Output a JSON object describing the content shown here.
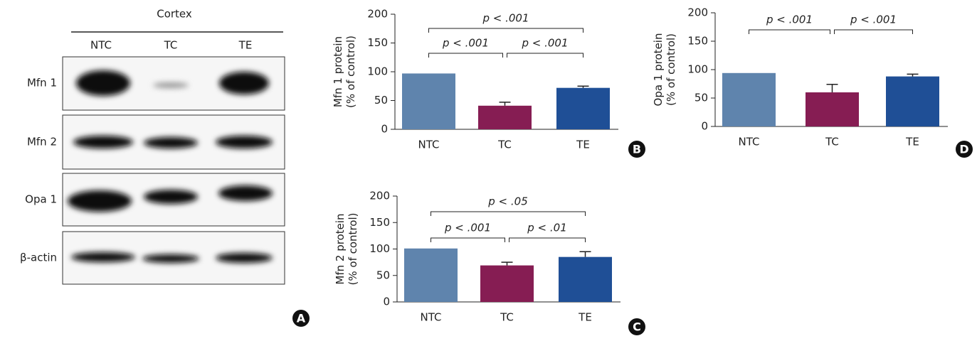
{
  "blot": {
    "title": "Cortex",
    "columns": [
      "NTC",
      "TC",
      "TE"
    ],
    "rows": [
      "Mfn 1",
      "Mfn 2",
      "Opa 1",
      "β-actin"
    ],
    "panel": "A"
  },
  "chart_data": [
    {
      "type": "bar",
      "panel": "B",
      "ylabel": [
        "Mfn 1 protein",
        "(% of control)"
      ],
      "categories": [
        "NTC",
        "TC",
        "TE"
      ],
      "values": [
        97,
        41,
        72
      ],
      "errors": [
        null,
        6,
        3
      ],
      "colors": [
        "#5f84ad",
        "#861d53",
        "#1f4f96"
      ],
      "ylim": [
        0,
        200
      ],
      "yticks": [
        0,
        50,
        100,
        150,
        200
      ],
      "annotations": [
        {
          "text": "p < .001",
          "between": [
            0,
            2
          ]
        },
        {
          "text": "p < .001",
          "between": [
            0,
            1
          ]
        },
        {
          "text": "p < .001",
          "between": [
            1,
            2
          ]
        }
      ]
    },
    {
      "type": "bar",
      "panel": "C",
      "ylabel": [
        "Mfn 2 protein",
        "(% of control)"
      ],
      "categories": [
        "NTC",
        "TC",
        "TE"
      ],
      "values": [
        101,
        69,
        85
      ],
      "errors": [
        null,
        6,
        10
      ],
      "colors": [
        "#5f84ad",
        "#861d53",
        "#1f4f96"
      ],
      "ylim": [
        0,
        200
      ],
      "yticks": [
        0,
        50,
        100,
        150,
        200
      ],
      "annotations": [
        {
          "text": "p < .05",
          "between": [
            0,
            2
          ]
        },
        {
          "text": "p < .001",
          "between": [
            0,
            1
          ]
        },
        {
          "text": "p < .01",
          "between": [
            1,
            2
          ]
        }
      ]
    },
    {
      "type": "bar",
      "panel": "D",
      "ylabel": [
        "Opa 1 protein",
        "(% of control)"
      ],
      "categories": [
        "NTC",
        "TC",
        "TE"
      ],
      "values": [
        94,
        60,
        88
      ],
      "errors": [
        null,
        14,
        4
      ],
      "colors": [
        "#5f84ad",
        "#861d53",
        "#1f4f96"
      ],
      "ylim": [
        0,
        200
      ],
      "yticks": [
        0,
        50,
        100,
        150,
        200
      ],
      "annotations": [
        {
          "text": "p < .001",
          "between": [
            0,
            1
          ]
        },
        {
          "text": "p < .001",
          "between": [
            1,
            2
          ]
        }
      ]
    }
  ]
}
